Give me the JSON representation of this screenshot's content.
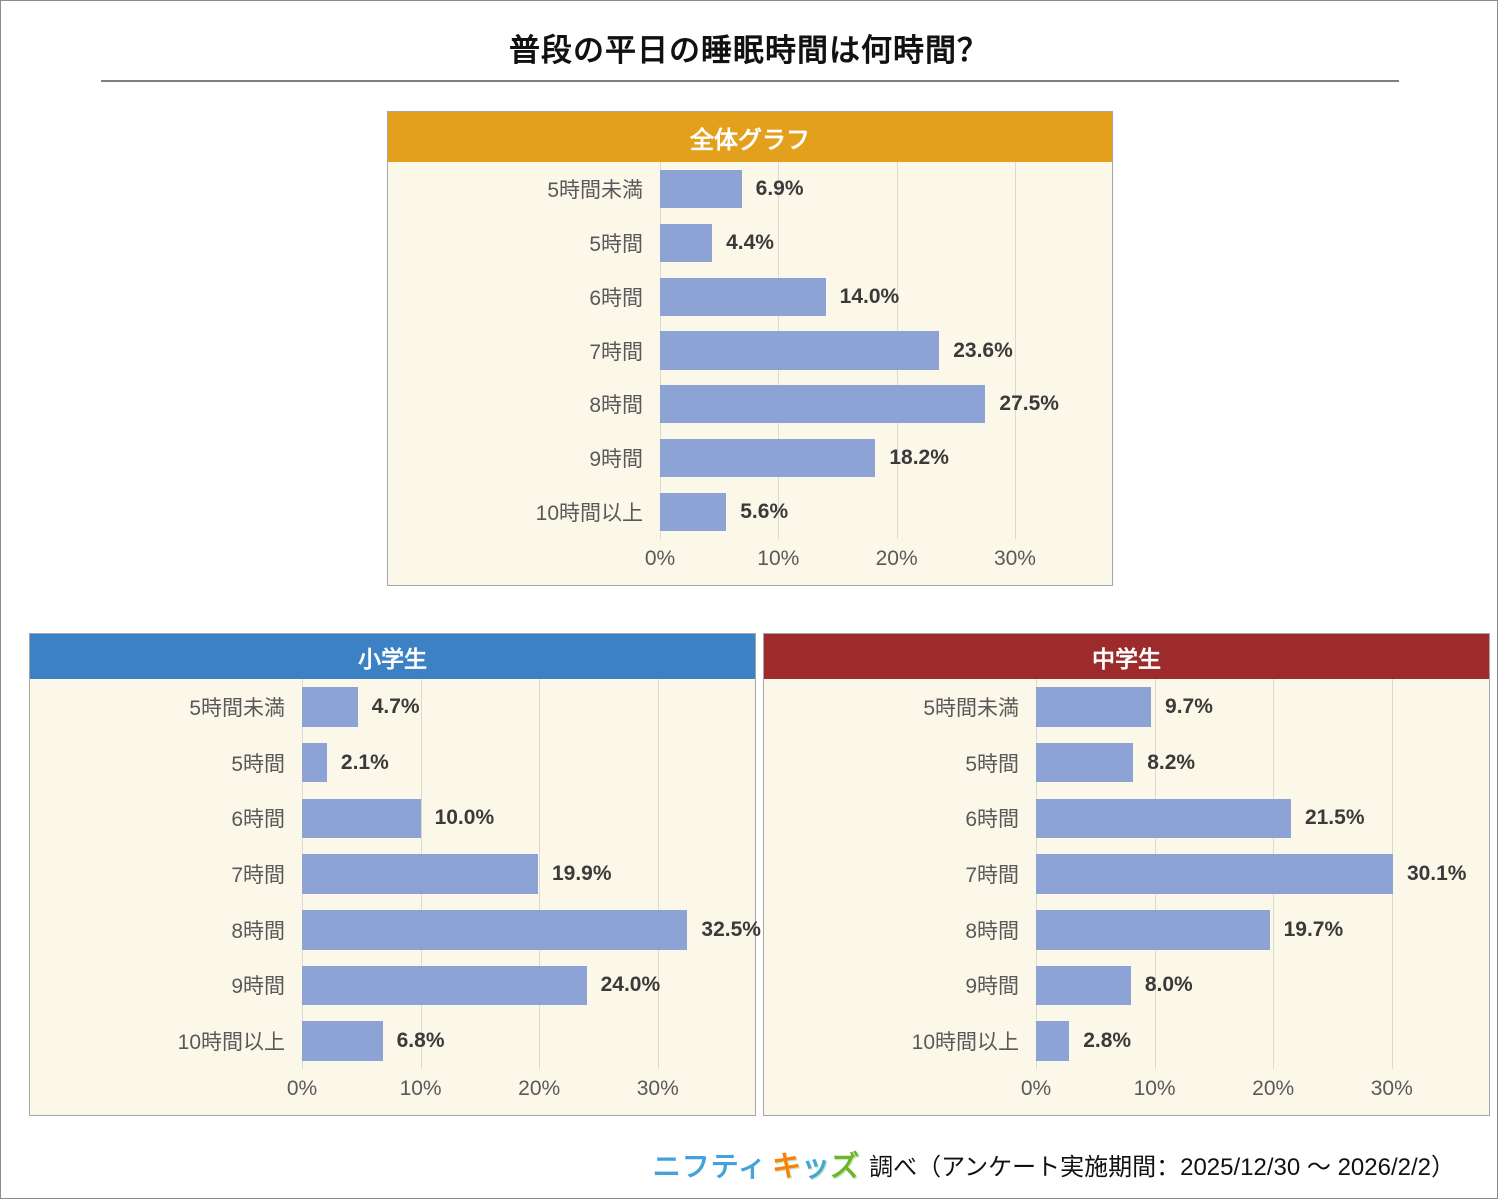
{
  "page": {
    "title": "普段の平日の睡眠時間は何時間？"
  },
  "colors": {
    "bar_fill": "#8DA3D6",
    "plot_background": "#FBF8E9",
    "gridline": "#DBDACC",
    "panel_border": "#A6A6A6",
    "overall_header": "#E2A01D",
    "elementary_header": "#3B81C4",
    "junior_high_header": "#9E2B2B",
    "nifty_logo_blue": "#45A1DB"
  },
  "chart_data": [
    {
      "type": "bar",
      "orientation": "horizontal",
      "title": "全体グラフ",
      "header_color": "#E2A01D",
      "categories": [
        "5時間未満",
        "5時間",
        "6時間",
        "7時間",
        "8時間",
        "9時間",
        "10時間以上"
      ],
      "values": [
        6.9,
        4.4,
        14.0,
        23.6,
        27.5,
        18.2,
        5.6
      ],
      "value_labels": [
        "6.9%",
        "4.4%",
        "14.0%",
        "23.6%",
        "27.5%",
        "18.2%",
        "5.6%"
      ],
      "xlim": [
        0,
        38.2
      ],
      "x_ticks": [
        0,
        10,
        20,
        30
      ],
      "x_tick_labels": [
        "0%",
        "10%",
        "20%",
        "30%"
      ],
      "grid": true,
      "legend": false
    },
    {
      "type": "bar",
      "orientation": "horizontal",
      "title": "小学生",
      "header_color": "#3B81C4",
      "categories": [
        "5時間未満",
        "5時間",
        "6時間",
        "7時間",
        "8時間",
        "9時間",
        "10時間以上"
      ],
      "values": [
        4.7,
        2.1,
        10.0,
        19.9,
        32.5,
        24.0,
        6.8
      ],
      "value_labels": [
        "4.7%",
        "2.1%",
        "10.0%",
        "19.9%",
        "32.5%",
        "24.0%",
        "6.8%"
      ],
      "xlim": [
        0,
        38.2
      ],
      "x_ticks": [
        0,
        10,
        20,
        30
      ],
      "x_tick_labels": [
        "0%",
        "10%",
        "20%",
        "30%"
      ],
      "grid": true,
      "legend": false
    },
    {
      "type": "bar",
      "orientation": "horizontal",
      "title": "中学生",
      "header_color": "#9E2B2B",
      "categories": [
        "5時間未満",
        "5時間",
        "6時間",
        "7時間",
        "8時間",
        "9時間",
        "10時間以上"
      ],
      "values": [
        9.7,
        8.2,
        21.5,
        30.1,
        19.7,
        8.0,
        2.8
      ],
      "value_labels": [
        "9.7%",
        "8.2%",
        "21.5%",
        "30.1%",
        "19.7%",
        "8.0%",
        "2.8%"
      ],
      "xlim": [
        0,
        38.2
      ],
      "x_ticks": [
        0,
        10,
        20,
        30
      ],
      "x_tick_labels": [
        "0%",
        "10%",
        "20%",
        "30%"
      ],
      "grid": true,
      "legend": false
    }
  ],
  "footer": {
    "logo_nifty": "ニフティ",
    "logo_kids_chars": [
      {
        "char": "キ",
        "color": "#F5820B"
      },
      {
        "char": "ッ",
        "color": "#3FA5DC"
      },
      {
        "char": "ズ",
        "color": "#6DB52C"
      }
    ],
    "text": "調べ（アンケート実施期間：2025/12/30 ～ 2026/2/2）"
  }
}
